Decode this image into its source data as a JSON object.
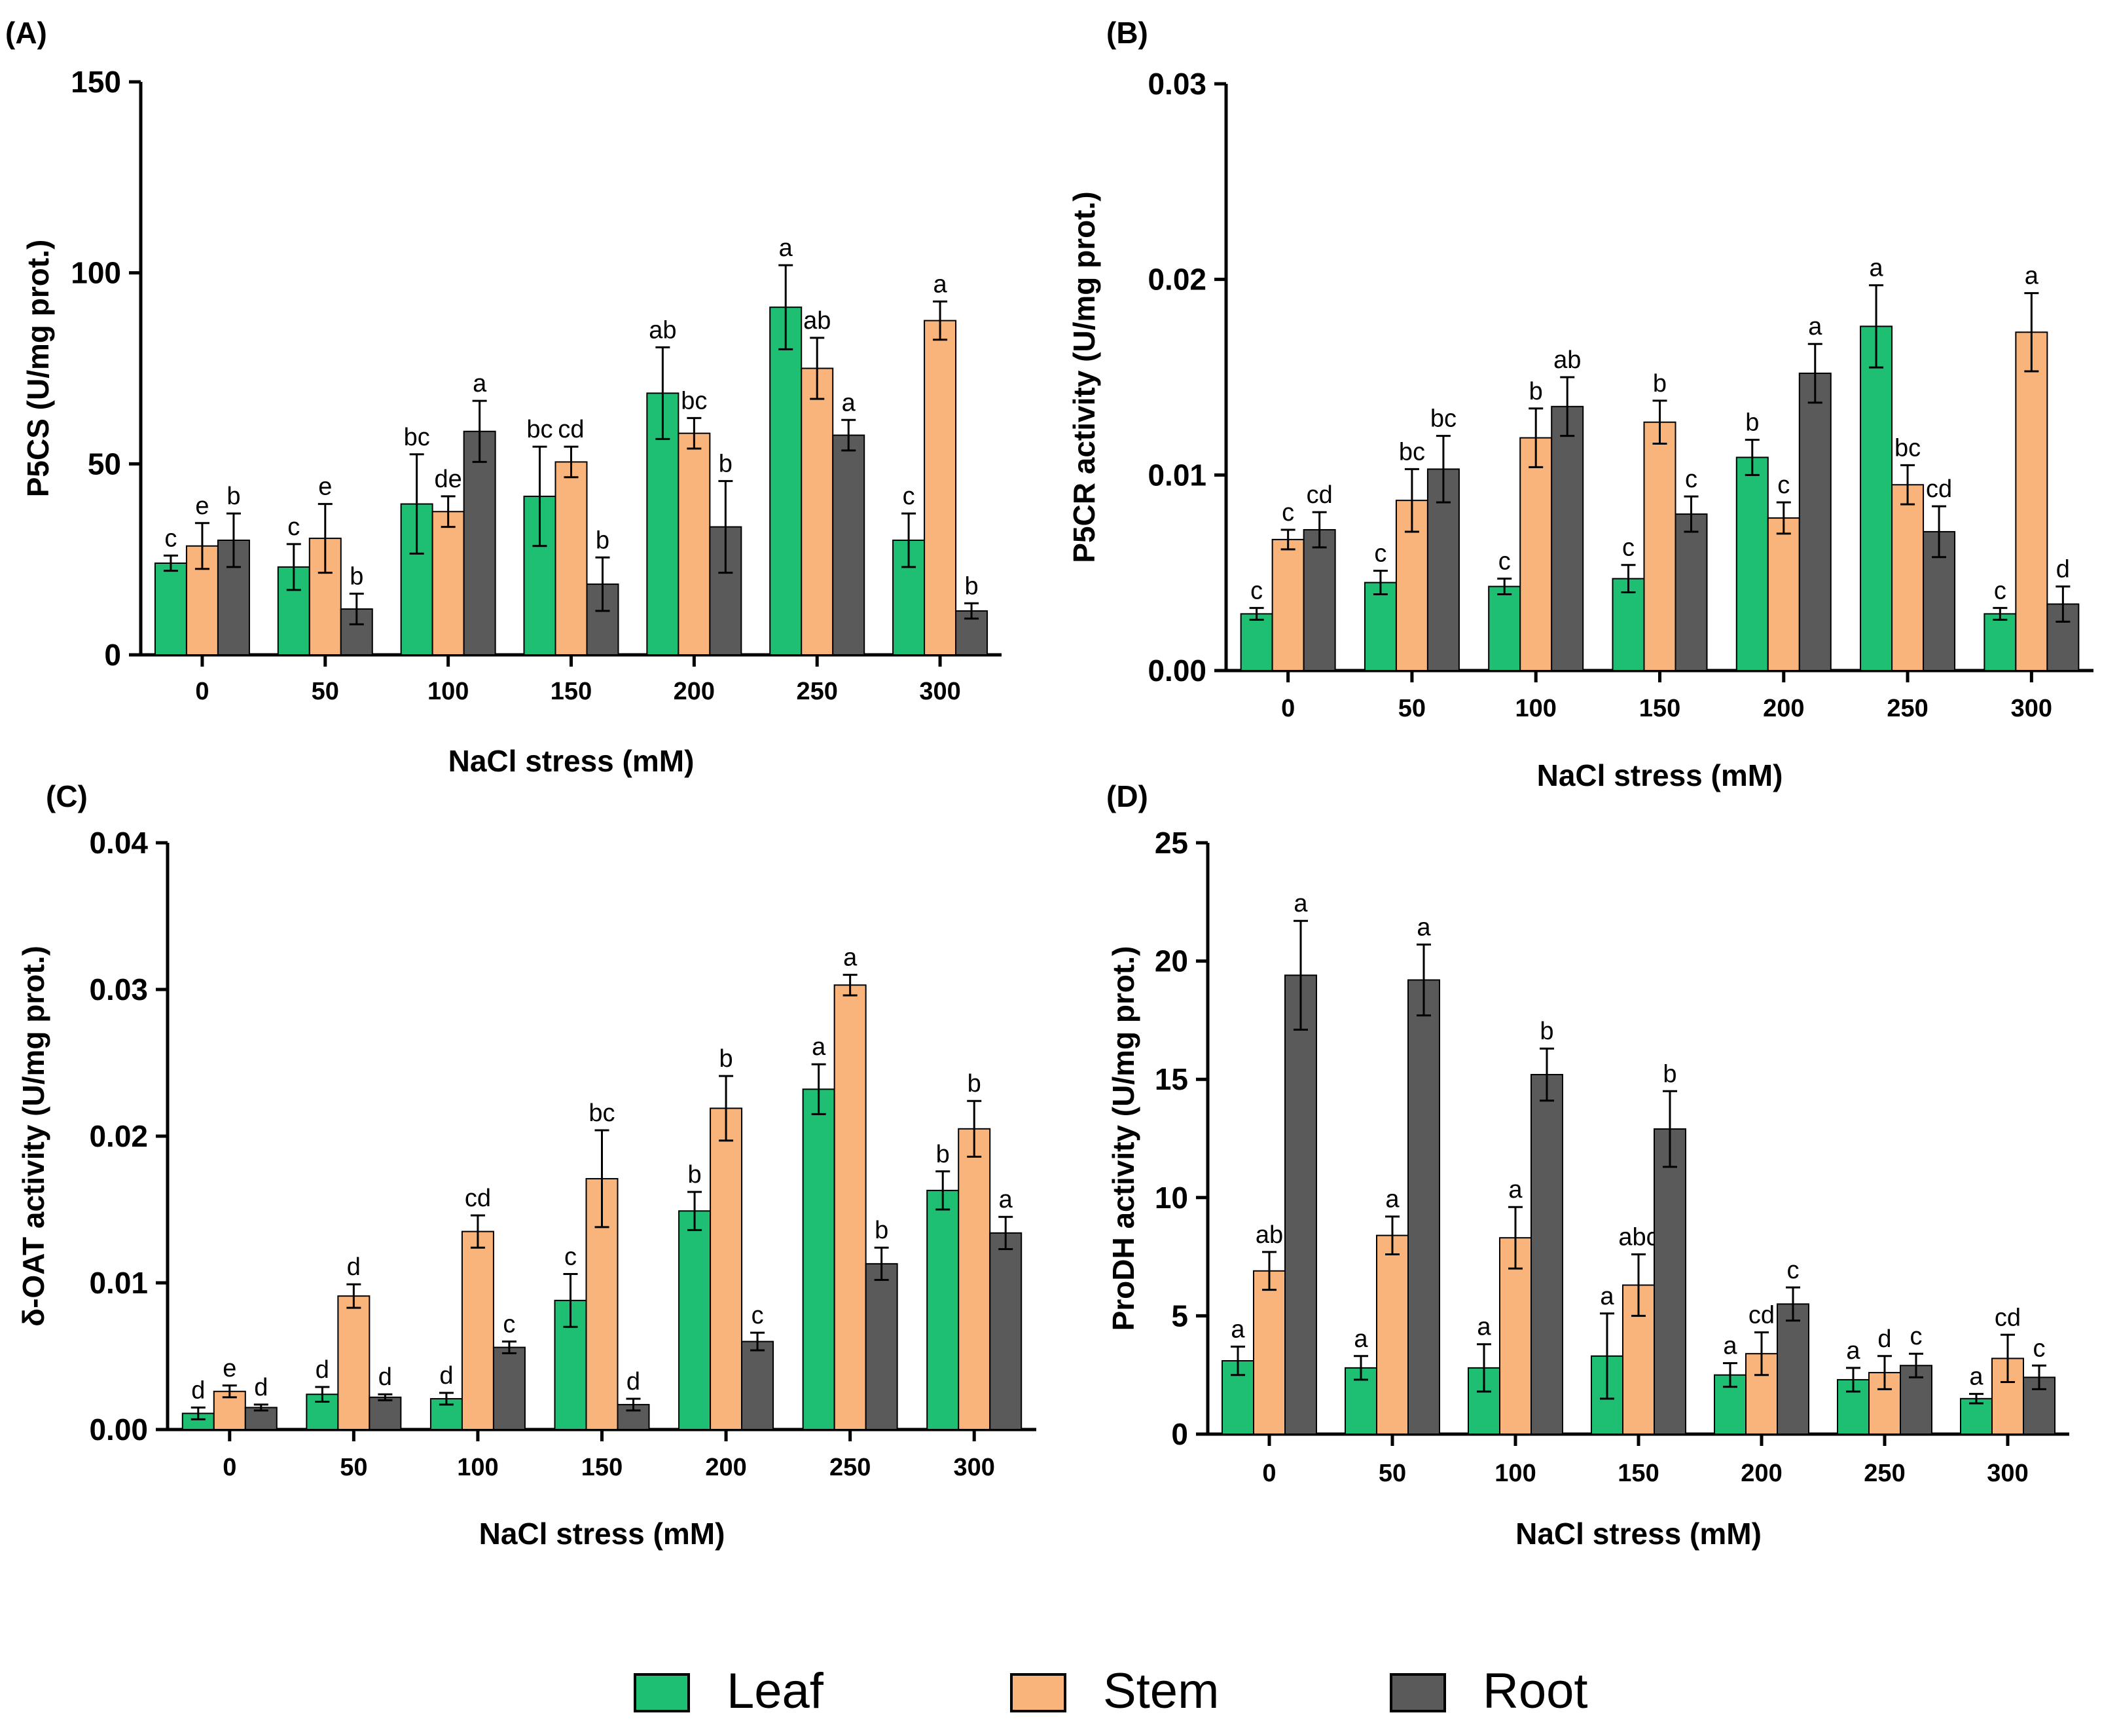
{
  "colors": {
    "Leaf": "#1fbf73",
    "Stem": "#f9b47c",
    "Root": "#5a5a5a"
  },
  "legend": {
    "placement": "bottom-center",
    "entries": [
      "Leaf",
      "Stem",
      "Root"
    ]
  },
  "chart_data": [
    {
      "panel_label": "(A)",
      "type": "bar",
      "xlabel": "NaCl stress (mM)",
      "ylabel": "P5CS (U/mg prot.)",
      "ylim": [
        0,
        150
      ],
      "yticks": [
        "0",
        "50",
        "100",
        "150"
      ],
      "categories": [
        "0",
        "50",
        "100",
        "150",
        "200",
        "250",
        "300"
      ],
      "series": [
        {
          "name": "Leaf",
          "values": [
            24,
            23,
            39.5,
            41.5,
            68.5,
            91,
            30
          ],
          "errors": [
            2,
            6,
            13,
            13,
            12,
            11,
            7
          ],
          "letters": [
            "c",
            "c",
            "bc",
            "bc",
            "ab",
            "a",
            "c"
          ]
        },
        {
          "name": "Stem",
          "values": [
            28.5,
            30.5,
            37.5,
            50.5,
            58,
            75,
            87.5
          ],
          "errors": [
            6,
            9,
            4,
            4,
            4,
            8,
            5
          ],
          "letters": [
            "e",
            "e",
            "de",
            "cd",
            "bc",
            "ab",
            "a"
          ]
        },
        {
          "name": "Root",
          "values": [
            30,
            12,
            58.5,
            18.5,
            33.5,
            57.5,
            11.5
          ],
          "errors": [
            7,
            4,
            8,
            7,
            12,
            4,
            2
          ],
          "letters": [
            "b",
            "b",
            "a",
            "b",
            "b",
            "a",
            "b"
          ]
        }
      ]
    },
    {
      "panel_label": "(B)",
      "type": "bar",
      "xlabel": "NaCl stress (mM)",
      "ylabel": "P5CR activity (U/mg prot.)",
      "ylim": [
        0,
        0.03
      ],
      "yticks": [
        "0.00",
        "0.01",
        "0.02",
        "0.03"
      ],
      "categories": [
        "0",
        "50",
        "100",
        "150",
        "200",
        "250",
        "300"
      ],
      "series": [
        {
          "name": "Leaf",
          "values": [
            0.0029,
            0.0045,
            0.0043,
            0.0047,
            0.0109,
            0.0176,
            0.0029
          ],
          "errors": [
            0.0003,
            0.0006,
            0.0004,
            0.0007,
            0.0009,
            0.0021,
            0.0003
          ],
          "letters": [
            "c",
            "c",
            "c",
            "c",
            "b",
            "a",
            "c"
          ]
        },
        {
          "name": "Stem",
          "values": [
            0.0067,
            0.0087,
            0.0119,
            0.0127,
            0.0078,
            0.0095,
            0.0173
          ],
          "errors": [
            0.0005,
            0.0016,
            0.0015,
            0.0011,
            0.0008,
            0.001,
            0.002
          ],
          "letters": [
            "c",
            "bc",
            "b",
            "b",
            "c",
            "bc",
            "a"
          ]
        },
        {
          "name": "Root",
          "values": [
            0.0072,
            0.0103,
            0.0135,
            0.008,
            0.0152,
            0.0071,
            0.0034
          ],
          "errors": [
            0.0009,
            0.0017,
            0.0015,
            0.0009,
            0.0015,
            0.0013,
            0.0009
          ],
          "letters": [
            "cd",
            "bc",
            "ab",
            "c",
            "a",
            "cd",
            "d"
          ]
        }
      ]
    },
    {
      "panel_label": "(C)",
      "type": "bar",
      "xlabel": "NaCl stress (mM)",
      "ylabel": "δ-OAT activity (U/mg prot.)",
      "ylim": [
        0,
        0.04
      ],
      "yticks": [
        "0.00",
        "0.01",
        "0.02",
        "0.03",
        "0.04"
      ],
      "categories": [
        "0",
        "50",
        "100",
        "150",
        "200",
        "250",
        "300"
      ],
      "series": [
        {
          "name": "Leaf",
          "values": [
            0.0011,
            0.0024,
            0.0021,
            0.0088,
            0.0149,
            0.0232,
            0.0163
          ],
          "errors": [
            0.0004,
            0.0005,
            0.0004,
            0.0018,
            0.0013,
            0.0017,
            0.0013
          ],
          "letters": [
            "d",
            "d",
            "d",
            "c",
            "b",
            "a",
            "b"
          ]
        },
        {
          "name": "Stem",
          "values": [
            0.0026,
            0.0091,
            0.0135,
            0.0171,
            0.0219,
            0.0303,
            0.0205
          ],
          "errors": [
            0.0004,
            0.0008,
            0.0011,
            0.0033,
            0.0022,
            0.0007,
            0.0019
          ],
          "letters": [
            "e",
            "d",
            "cd",
            "bc",
            "b",
            "a",
            "b"
          ]
        },
        {
          "name": "Root",
          "values": [
            0.0015,
            0.0022,
            0.0056,
            0.0017,
            0.006,
            0.0113,
            0.0134
          ],
          "errors": [
            0.0002,
            0.0002,
            0.0004,
            0.0004,
            0.0006,
            0.0011,
            0.0011
          ],
          "letters": [
            "d",
            "d",
            "c",
            "d",
            "c",
            "b",
            "a"
          ]
        }
      ]
    },
    {
      "panel_label": "(D)",
      "type": "bar",
      "xlabel": "NaCl stress (mM)",
      "ylabel": "ProDH activity (U/mg prot.)",
      "ylim": [
        0,
        25
      ],
      "yticks": [
        "0",
        "5",
        "10",
        "15",
        "20",
        "25"
      ],
      "categories": [
        "0",
        "50",
        "100",
        "150",
        "200",
        "250",
        "300"
      ],
      "series": [
        {
          "name": "Leaf",
          "values": [
            3.1,
            2.8,
            2.8,
            3.3,
            2.5,
            2.3,
            1.5
          ],
          "errors": [
            0.6,
            0.5,
            1,
            1.8,
            0.5,
            0.5,
            0.2
          ],
          "letters": [
            "a",
            "a",
            "a",
            "a",
            "a",
            "a",
            "a"
          ]
        },
        {
          "name": "Stem",
          "values": [
            6.9,
            8.4,
            8.3,
            6.3,
            3.4,
            2.6,
            3.2
          ],
          "errors": [
            0.8,
            0.8,
            1.3,
            1.3,
            0.9,
            0.7,
            1
          ],
          "letters": [
            "ab",
            "a",
            "a",
            "abc",
            "cd",
            "d",
            "cd"
          ]
        },
        {
          "name": "Root",
          "values": [
            19.4,
            19.2,
            15.2,
            12.9,
            5.5,
            2.9,
            2.4
          ],
          "errors": [
            2.3,
            1.5,
            1.1,
            1.6,
            0.7,
            0.5,
            0.5
          ],
          "letters": [
            "a",
            "a",
            "b",
            "b",
            "c",
            "c",
            "c"
          ]
        }
      ]
    }
  ]
}
